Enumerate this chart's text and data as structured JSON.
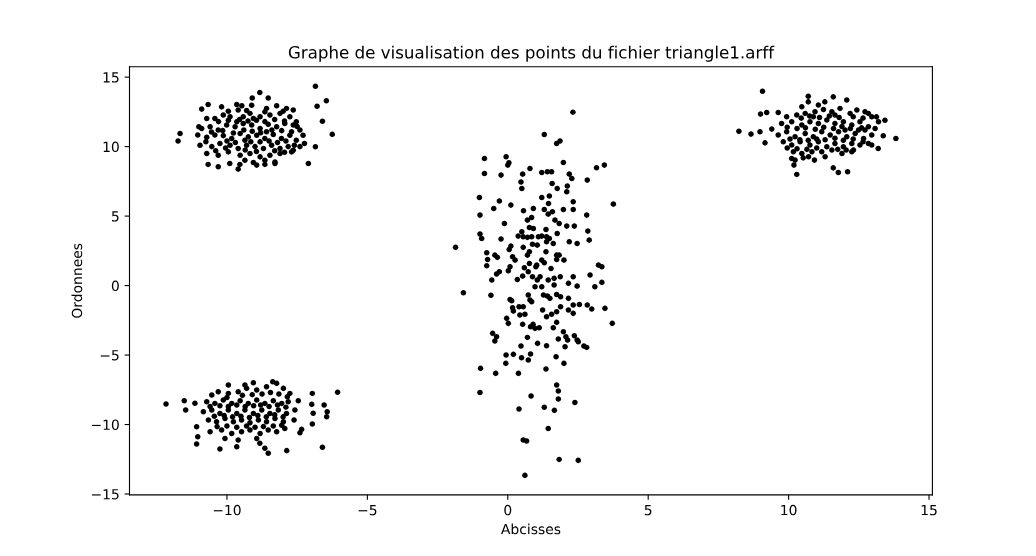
{
  "chart_data": {
    "type": "scatter",
    "title": "Graphe de visualisation des points du fichier triangle1.arff",
    "xlabel": "Abcisses",
    "ylabel": "Ordonnees",
    "marker": "circle",
    "xlim": [
      -13.47,
      15.12
    ],
    "ylim": [
      -15.06,
      15.75
    ],
    "xticks": [
      -10,
      -5,
      0,
      5,
      10,
      15
    ],
    "yticks": [
      -15,
      -10,
      -5,
      0,
      5,
      10,
      15
    ],
    "series": [
      {
        "color": "#000000",
        "x": [
          -11.74,
          -11.67,
          -6.85,
          -6.46,
          -6.79,
          -6.6,
          -6.25,
          -6.85,
          -7.1,
          -8.83,
          -9.1,
          -8.53,
          -10.67,
          -10.9,
          -10.67,
          -10.31,
          -9.6,
          -9.54,
          -8.94,
          -8.65,
          -8.29,
          -9.9,
          -11.04,
          -11.0,
          -10.96,
          -10.19,
          -9.65,
          -9.47,
          -9.12,
          -8.59,
          -8.23,
          -7.88,
          -7.64,
          -10.72,
          -10.43,
          -10.13,
          -9.89,
          -9.42,
          -9.18,
          -8.82,
          -8.47,
          -8.11,
          -7.76,
          -7.53,
          -10.9,
          -10.6,
          -10.31,
          -10.01,
          -9.71,
          -9.42,
          -9.12,
          -8.82,
          -8.53,
          -8.23,
          -7.94,
          -7.64,
          -7.4,
          -7.7,
          -10.72,
          -10.43,
          -10.13,
          -9.83,
          -9.53,
          -9.24,
          -8.94,
          -8.65,
          -8.35,
          -8.06,
          -7.76,
          -7.53,
          -7.29,
          -7.24,
          -10.54,
          -10.25,
          -9.89,
          -9.6,
          -9.3,
          -9.0,
          -8.7,
          -8.41,
          -8.11,
          -7.82,
          -7.64,
          -7.4,
          -10.72,
          -10.31,
          -9.95,
          -9.53,
          -9.18,
          -8.82,
          -8.47,
          -8.11,
          -7.7,
          -9.36,
          -9.06,
          -8.65,
          -8.29,
          -9.77,
          -9.65,
          -9.36,
          -8.59,
          -8.82,
          -9.06,
          -9.6,
          -9.95,
          -9.3,
          -8.65,
          -8.0,
          -10.3,
          -9.95,
          -9.55,
          -9.25,
          -8.95,
          -8.65,
          -8.3,
          -7.95,
          -10.55,
          -10.15,
          -9.4,
          -9.1,
          -8.8,
          -8.4,
          -8.05,
          -7.5,
          -10.75,
          -10.0,
          -9.7,
          -9.15,
          -8.5,
          -8.2,
          -7.9,
          -7.6,
          -10.4,
          -10.05,
          -9.35,
          -8.95,
          -8.3,
          -7.95
        ],
        "values": [
          10.4,
          10.95,
          14.35,
          13.3,
          12.9,
          11.83,
          10.88,
          9.99,
          8.79,
          13.9,
          13.5,
          13.5,
          13.03,
          12.7,
          8.72,
          8.55,
          8.38,
          8.72,
          8.67,
          8.72,
          8.79,
          8.79,
          10.83,
          11.43,
          10.1,
          12.86,
          13.03,
          12.94,
          12.98,
          12.75,
          12.94,
          12.75,
          12.63,
          12.03,
          12.03,
          12.27,
          12.15,
          12.15,
          12.39,
          12.15,
          12.27,
          12.39,
          12.15,
          11.79,
          11.31,
          11.43,
          11.19,
          11.55,
          11.43,
          11.67,
          11.55,
          11.31,
          11.6,
          11.43,
          11.67,
          11.55,
          11.19,
          11.07,
          10.67,
          10.84,
          10.79,
          10.58,
          10.94,
          10.7,
          10.82,
          10.58,
          10.87,
          10.58,
          10.82,
          10.46,
          10.82,
          10.22,
          10.0,
          10.22,
          10.1,
          9.86,
          10.1,
          10.0,
          9.86,
          10.1,
          9.86,
          10.0,
          9.74,
          10.0,
          9.5,
          9.38,
          9.62,
          9.38,
          9.5,
          9.26,
          9.38,
          9.5,
          9.62,
          9.02,
          8.86,
          9.02,
          8.9,
          10.98,
          11.79,
          10.46,
          11.07,
          10.34,
          12.03,
          12.63,
          12.55,
          12.6,
          12.5,
          12.55,
          11.8,
          11.9,
          11.95,
          11.85,
          11.9,
          11.8,
          11.95,
          11.85,
          11.05,
          11.15,
          11.2,
          11.1,
          11.0,
          11.2,
          11.15,
          11.45,
          10.35,
          10.4,
          10.3,
          10.35,
          10.4,
          10.3,
          10.4,
          10.1,
          9.7,
          9.9,
          9.75,
          9.65,
          9.7,
          9.6
        ]
      },
      {
        "color": "#000000",
        "x": [
          9.07,
          8.23,
          8.66,
          8.98,
          9.0,
          9.22,
          9.63,
          9.4,
          9.16,
          13.82,
          13.37,
          13.43,
          13.19,
          10.7,
          10.7,
          11.59,
          12.07,
          11.29,
          10.29,
          11.59,
          11.77,
          12.1,
          10.19,
          10.92,
          10.52,
          10.11,
          12.96,
          12.72,
          13.13,
          12.84,
          9.93,
          10.29,
          10.59,
          10.94,
          11.24,
          11.54,
          11.83,
          12.19,
          12.43,
          12.72,
          12.96,
          13.2,
          9.75,
          10.11,
          10.47,
          10.76,
          11.06,
          11.36,
          11.65,
          11.95,
          12.25,
          12.54,
          12.84,
          13.08,
          9.63,
          9.93,
          10.23,
          10.59,
          10.88,
          11.18,
          11.48,
          11.78,
          12.07,
          12.37,
          12.67,
          12.96,
          12.49,
          9.81,
          10.11,
          10.41,
          10.76,
          11.06,
          11.36,
          11.65,
          11.95,
          12.25,
          12.54,
          12.84,
          10.17,
          10.47,
          10.83,
          11.18,
          11.54,
          11.9,
          12.25,
          10.23,
          10.71,
          11.3,
          12.31,
          10.47,
          11.06,
          11.65,
          10.88,
          12.01,
          10.45,
          10.75,
          11.1,
          11.45,
          11.8,
          12.3,
          12.65,
          9.95,
          10.3,
          10.6,
          10.95,
          11.25,
          11.6,
          11.9,
          12.2,
          12.6,
          10.05,
          10.4,
          10.7,
          11.0,
          11.3,
          11.65,
          11.95,
          12.3,
          12.65,
          10.3,
          10.65,
          11.0,
          11.75,
          12.05,
          9.95
        ],
        "values": [
          13.99,
          11.11,
          10.9,
          11.07,
          12.34,
          12.46,
          12.46,
          11.26,
          10.27,
          10.59,
          10.78,
          11.9,
          9.87,
          13.63,
          13.22,
          13.58,
          13.35,
          13.22,
          8.0,
          8.47,
          8.14,
          8.19,
          8.67,
          9.03,
          9.19,
          9.15,
          10.11,
          11.19,
          12.14,
          12.39,
          12.15,
          12.27,
          12.39,
          12.51,
          12.67,
          12.51,
          12.75,
          12.39,
          12.63,
          12.51,
          12.15,
          11.79,
          11.67,
          11.79,
          11.55,
          11.79,
          11.67,
          11.91,
          11.67,
          11.79,
          11.55,
          11.79,
          11.43,
          11.31,
          10.83,
          11.07,
          10.71,
          10.95,
          10.71,
          11.07,
          10.83,
          11.07,
          10.71,
          10.95,
          10.59,
          10.83,
          11.19,
          10.35,
          10.11,
          10.35,
          10.11,
          10.35,
          9.99,
          10.23,
          9.99,
          10.23,
          10.11,
          10.23,
          9.63,
          9.51,
          9.63,
          9.63,
          9.75,
          9.51,
          9.63,
          9.03,
          9.27,
          9.27,
          9.75,
          12.87,
          12.99,
          12.27,
          12.15,
          11.19,
          12.05,
          12.2,
          12.1,
          12.2,
          12.1,
          12.15,
          12.05,
          11.4,
          11.3,
          11.35,
          11.25,
          11.4,
          11.3,
          11.45,
          11.3,
          11.35,
          10.55,
          10.5,
          10.45,
          10.55,
          10.5,
          10.6,
          10.45,
          10.55,
          10.35,
          9.85,
          9.8,
          9.9,
          9.8,
          9.75,
          9.9
        ]
      },
      {
        "color": "#000000",
        "x": [
          -12.17,
          -11.52,
          -11.47,
          -11.14,
          -11.08,
          -11.04,
          -11.08,
          -10.25,
          -9.95,
          -9.65,
          -9.6,
          -8.83,
          -8.65,
          -8.53,
          -7.87,
          -6.6,
          -6.06,
          -6.96,
          -6.98,
          -6.93,
          -6.96,
          -6.54,
          -6.43,
          -6.45,
          -7.34,
          -7.4,
          -7.58,
          -7.61,
          -7.46,
          -8.23,
          -8.37,
          -9.06,
          -9.36,
          -10.54,
          -10.31,
          -9.95,
          -9.6,
          -9.3,
          -8.94,
          -8.59,
          -7.99,
          -7.76,
          -10.72,
          -10.43,
          -10.13,
          -9.83,
          -9.53,
          -9.24,
          -8.94,
          -8.65,
          -8.35,
          -8.05,
          -7.82,
          -10.84,
          -10.54,
          -10.25,
          -9.95,
          -9.65,
          -9.36,
          -9.06,
          -8.76,
          -8.47,
          -8.17,
          -7.88,
          -10.66,
          -10.37,
          -10.07,
          -9.77,
          -9.48,
          -9.18,
          -8.88,
          -8.59,
          -8.29,
          -7.99,
          -10.6,
          -10.19,
          -9.83,
          -9.48,
          -9.18,
          -8.82,
          -8.53,
          -8.23,
          -7.94,
          -10.07,
          -8.94,
          -10.0,
          -9.45,
          -9.1,
          -8.75,
          -8.45,
          -8.15,
          -7.85,
          -10.6,
          -10.25,
          -9.95,
          -9.65,
          -9.35,
          -9.05,
          -8.8,
          -8.5,
          -8.2,
          -7.9,
          -10.45,
          -10.1,
          -9.8,
          -9.5,
          -9.2,
          -8.9,
          -8.6,
          -8.3,
          -8.0,
          -10.35,
          -10.0,
          -9.65,
          -9.3,
          -9.0,
          -8.7,
          -8.35,
          -8.05
        ],
        "values": [
          -8.52,
          -8.29,
          -8.96,
          -8.47,
          -10.16,
          -10.88,
          -11.4,
          -11.76,
          -7.16,
          -11.6,
          -11.12,
          -11.35,
          -11.71,
          -12.07,
          -11.88,
          -11.64,
          -7.68,
          -7.76,
          -8.55,
          -9.19,
          -9.96,
          -8.6,
          -9.08,
          -9.44,
          -10.35,
          -10.59,
          -8.96,
          -9.68,
          -8.29,
          -7.04,
          -6.92,
          -6.99,
          -7.16,
          -7.88,
          -7.64,
          -7.76,
          -7.64,
          -7.4,
          -7.52,
          -7.28,
          -7.4,
          -7.76,
          -8.36,
          -8.48,
          -8.24,
          -8.48,
          -8.29,
          -8.48,
          -8.24,
          -8.48,
          -8.29,
          -8.48,
          -8.36,
          -9.08,
          -8.96,
          -9.2,
          -8.96,
          -9.2,
          -8.96,
          -9.2,
          -8.96,
          -9.2,
          -8.96,
          -9.2,
          -9.68,
          -9.8,
          -9.56,
          -9.8,
          -9.68,
          -9.87,
          -9.68,
          -9.8,
          -9.56,
          -9.8,
          -10.52,
          -10.4,
          -10.64,
          -10.52,
          -10.4,
          -10.64,
          -10.4,
          -10.52,
          -10.28,
          -11.0,
          -11.0,
          -8.05,
          -7.9,
          -7.85,
          -7.8,
          -7.7,
          -7.8,
          -8.0,
          -8.7,
          -8.65,
          -8.7,
          -8.6,
          -8.7,
          -8.65,
          -8.6,
          -8.7,
          -8.6,
          -8.75,
          -9.4,
          -9.35,
          -9.45,
          -9.4,
          -9.5,
          -9.35,
          -9.45,
          -9.3,
          -9.45,
          -10.15,
          -10.1,
          -10.2,
          -10.1,
          -10.2,
          -10.15,
          -10.1,
          -10.05
        ]
      },
      {
        "color": "#000000",
        "x": [
          2.32,
          1.3,
          1.74,
          1.86,
          -0.83,
          -0.06,
          0.04,
          0.0,
          1.98,
          3.16,
          3.44,
          -0.83,
          -0.24,
          0.53,
          0.79,
          1.21,
          1.41,
          1.56,
          2.19,
          2.28,
          0.47,
          0.5,
          1.58,
          1.76,
          2.12,
          2.1,
          2.83,
          -1.01,
          -0.3,
          -0.5,
          0.11,
          0.56,
          0.91,
          1.21,
          1.48,
          1.45,
          1.3,
          1.44,
          1.59,
          1.98,
          2.33,
          2.33,
          3.76,
          -0.99,
          2.81,
          1.68,
          1.83,
          0.7,
          0.85,
          -0.12,
          2.1,
          2.37,
          0.77,
          0.91,
          1.36,
          2.85,
          -0.99,
          -0.93,
          -0.24,
          0.37,
          0.55,
          0.7,
          0.85,
          1.09,
          1.21,
          1.38,
          1.76,
          0.5,
          2.9,
          2.19,
          2.47,
          1.62,
          0.88,
          1.05,
          1.38,
          1.48,
          -1.86,
          0.11,
          0.05,
          0.55,
          0.77,
          0.7,
          1.36,
          1.74,
          1.83,
          2.0,
          -0.75,
          -0.72,
          -0.75,
          -0.46,
          -0.37,
          0.17,
          0.26,
          0.77,
          1.03,
          1.0,
          1.21,
          1.3,
          1.54,
          1.74,
          -0.3,
          -0.4,
          0.08,
          0.02,
          0.53,
          0.59,
          0.73,
          0.88,
          1.15,
          1.05,
          1.21,
          0.97,
          1.44,
          1.65,
          1.87,
          1.65,
          2.16,
          2.33,
          2.47,
          2.93,
          3.23,
          3.35,
          -0.57,
          0.34,
          3.1,
          3.35,
          -1.58,
          -0.6,
          0.08,
          0.14,
          0.73,
          0.79,
          0.85,
          0.17,
          0.2,
          0.4,
          0.55,
          0.43,
          0.61,
          -0.04,
          0.02,
          0.53,
          0.81,
          0.97,
          1.12,
          0.9,
          1.27,
          1.41,
          1.5,
          1.74,
          1.88,
          1.24,
          1.38,
          1.56,
          1.74,
          1.88,
          2.16,
          2.16,
          2.33,
          2.33,
          2.55,
          2.83,
          2.99,
          3.46,
          3.72,
          1.62,
          1.74,
          0.7,
          -0.54,
          -0.4,
          -0.46,
          0.47,
          1.06,
          1.38,
          1.8,
          1.98,
          2.07,
          2.04,
          2.13,
          2.37,
          2.47,
          2.51,
          2.71,
          2.81,
          -0.06,
          0.2,
          -0.07,
          0.49,
          0.73,
          0.81,
          1.72,
          1.36,
          2.0,
          -0.97,
          -0.43,
          0.38,
          -0.99,
          0.83,
          1.74,
          1.8,
          1.8,
          0.4,
          1.3,
          1.66,
          2.39,
          1.44,
          0.55,
          0.67,
          1.83,
          2.51,
          0.61
        ],
        "values": [
          12.48,
          10.87,
          10.23,
          10.4,
          9.15,
          9.27,
          8.84,
          8.67,
          8.86,
          8.48,
          8.67,
          8.07,
          7.95,
          8.02,
          8.43,
          8.14,
          8.19,
          8.19,
          8.02,
          7.71,
          7.45,
          6.99,
          7.35,
          6.99,
          7.16,
          6.75,
          7.59,
          6.34,
          6.08,
          5.55,
          5.79,
          5.38,
          5.55,
          6.34,
          6.44,
          5.91,
          5.48,
          5.14,
          5.31,
          5.48,
          5.48,
          6.03,
          5.86,
          5.07,
          5.07,
          4.71,
          4.47,
          4.71,
          4.9,
          4.47,
          4.28,
          4.28,
          4.18,
          4.11,
          4.04,
          3.92,
          3.71,
          3.39,
          3.35,
          3.56,
          3.51,
          3.47,
          3.51,
          3.51,
          3.56,
          3.51,
          3.75,
          3.87,
          3.27,
          3.15,
          3.03,
          3.03,
          2.98,
          2.91,
          3.15,
          3.39,
          2.75,
          2.84,
          2.6,
          2.75,
          2.43,
          2.19,
          2.43,
          2.19,
          2.19,
          1.83,
          2.36,
          1.88,
          1.43,
          2.19,
          2.03,
          2.07,
          1.83,
          1.59,
          1.47,
          1.35,
          1.83,
          1.64,
          1.23,
          1.88,
          0.99,
          0.83,
          1.35,
          1.07,
          0.68,
          1.28,
          0.99,
          0.64,
          0.64,
          0.4,
          -0.08,
          -0.08,
          0.4,
          0.52,
          0.64,
          0.04,
          0.16,
          0.64,
          -0.04,
          0.76,
          1.47,
          1.35,
          0.4,
          0.44,
          -0.08,
          0.23,
          -0.52,
          -0.7,
          -1.0,
          -1.09,
          -0.68,
          -1.04,
          -1.16,
          -1.6,
          -1.83,
          -1.52,
          -1.52,
          -2.12,
          -2.07,
          -2.36,
          -2.72,
          -2.79,
          -2.96,
          -3.08,
          -3.03,
          -2.79,
          -0.68,
          -0.76,
          -0.92,
          -0.64,
          -0.8,
          -1.76,
          -2.24,
          -2.07,
          -1.88,
          -1.52,
          -0.92,
          -1.76,
          -1.4,
          -2.0,
          -1.36,
          -1.4,
          -1.69,
          -1.64,
          -2.72,
          -3.03,
          -2.65,
          -3.73,
          -3.44,
          -3.68,
          -3.99,
          -4.35,
          -4.16,
          -4.33,
          -3.85,
          -3.32,
          -3.68,
          -4.4,
          -3.92,
          -3.61,
          -3.92,
          -4.04,
          -4.35,
          -4.45,
          -5.0,
          -4.95,
          -5.6,
          -5.19,
          -5.36,
          -4.93,
          -5.12,
          -6.01,
          -5.6,
          -5.96,
          -6.32,
          -6.32,
          -7.69,
          -7.95,
          -7.16,
          -7.59,
          -8.16,
          -8.88,
          -8.76,
          -8.98,
          -8.41,
          -10.28,
          -11.11,
          -11.19,
          -12.51,
          -12.58,
          -13.66
        ]
      }
    ]
  }
}
